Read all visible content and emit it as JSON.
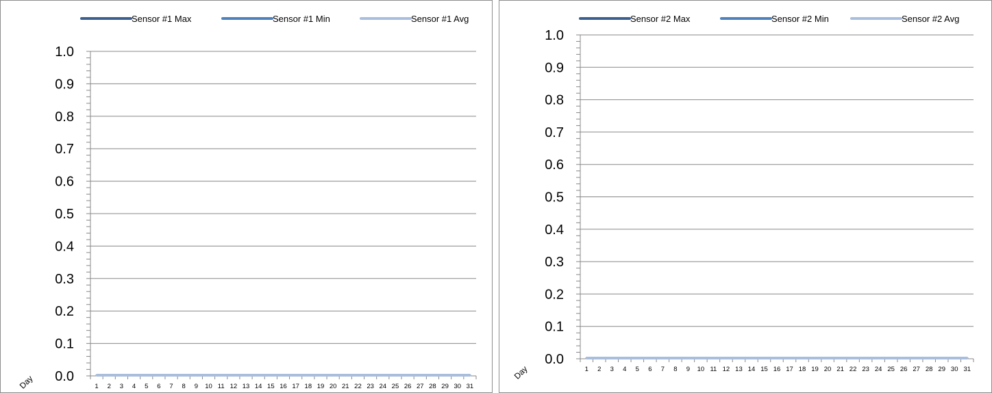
{
  "chart_data": [
    {
      "type": "line",
      "title": "",
      "xlabel": "Day",
      "ylabel": "",
      "categories": [
        "1",
        "2",
        "3",
        "4",
        "5",
        "6",
        "7",
        "8",
        "9",
        "10",
        "11",
        "12",
        "13",
        "14",
        "15",
        "16",
        "17",
        "18",
        "19",
        "20",
        "21",
        "22",
        "23",
        "24",
        "25",
        "26",
        "27",
        "28",
        "29",
        "30",
        "31"
      ],
      "ylim": [
        0,
        1.0
      ],
      "yticks": [
        "0.0",
        "0.1",
        "0.2",
        "0.3",
        "0.4",
        "0.5",
        "0.6",
        "0.7",
        "0.8",
        "0.9",
        "1.0"
      ],
      "grid": true,
      "legend_position": "top",
      "series": [
        {
          "name": "Sensor #1 Max",
          "color": "#3b5f8f",
          "values": [
            0,
            0,
            0,
            0,
            0,
            0,
            0,
            0,
            0,
            0,
            0,
            0,
            0,
            0,
            0,
            0,
            0,
            0,
            0,
            0,
            0,
            0,
            0,
            0,
            0,
            0,
            0,
            0,
            0,
            0,
            0
          ]
        },
        {
          "name": "Sensor #1 Min",
          "color": "#4f81bd",
          "values": [
            0,
            0,
            0,
            0,
            0,
            0,
            0,
            0,
            0,
            0,
            0,
            0,
            0,
            0,
            0,
            0,
            0,
            0,
            0,
            0,
            0,
            0,
            0,
            0,
            0,
            0,
            0,
            0,
            0,
            0,
            0
          ]
        },
        {
          "name": "Sensor #1 Avg",
          "color": "#a9bedc",
          "values": [
            0,
            0,
            0,
            0,
            0,
            0,
            0,
            0,
            0,
            0,
            0,
            0,
            0,
            0,
            0,
            0,
            0,
            0,
            0,
            0,
            0,
            0,
            0,
            0,
            0,
            0,
            0,
            0,
            0,
            0,
            0
          ]
        }
      ]
    },
    {
      "type": "line",
      "title": "",
      "xlabel": "Day",
      "ylabel": "",
      "categories": [
        "1",
        "2",
        "3",
        "4",
        "5",
        "6",
        "7",
        "8",
        "9",
        "10",
        "11",
        "12",
        "13",
        "14",
        "15",
        "16",
        "17",
        "18",
        "19",
        "20",
        "21",
        "22",
        "23",
        "24",
        "25",
        "26",
        "27",
        "28",
        "29",
        "30",
        "31"
      ],
      "ylim": [
        0,
        1.0
      ],
      "yticks": [
        "0.0",
        "0.1",
        "0.2",
        "0.3",
        "0.4",
        "0.5",
        "0.6",
        "0.7",
        "0.8",
        "0.9",
        "1.0"
      ],
      "grid": true,
      "legend_position": "top",
      "series": [
        {
          "name": "Sensor #2 Max",
          "color": "#3b5f8f",
          "values": [
            0,
            0,
            0,
            0,
            0,
            0,
            0,
            0,
            0,
            0,
            0,
            0,
            0,
            0,
            0,
            0,
            0,
            0,
            0,
            0,
            0,
            0,
            0,
            0,
            0,
            0,
            0,
            0,
            0,
            0,
            0
          ]
        },
        {
          "name": "Sensor #2 Min",
          "color": "#4f81bd",
          "values": [
            0,
            0,
            0,
            0,
            0,
            0,
            0,
            0,
            0,
            0,
            0,
            0,
            0,
            0,
            0,
            0,
            0,
            0,
            0,
            0,
            0,
            0,
            0,
            0,
            0,
            0,
            0,
            0,
            0,
            0,
            0
          ]
        },
        {
          "name": "Sensor #2 Avg",
          "color": "#a9bedc",
          "values": [
            0,
            0,
            0,
            0,
            0,
            0,
            0,
            0,
            0,
            0,
            0,
            0,
            0,
            0,
            0,
            0,
            0,
            0,
            0,
            0,
            0,
            0,
            0,
            0,
            0,
            0,
            0,
            0,
            0,
            0,
            0
          ]
        }
      ]
    }
  ]
}
